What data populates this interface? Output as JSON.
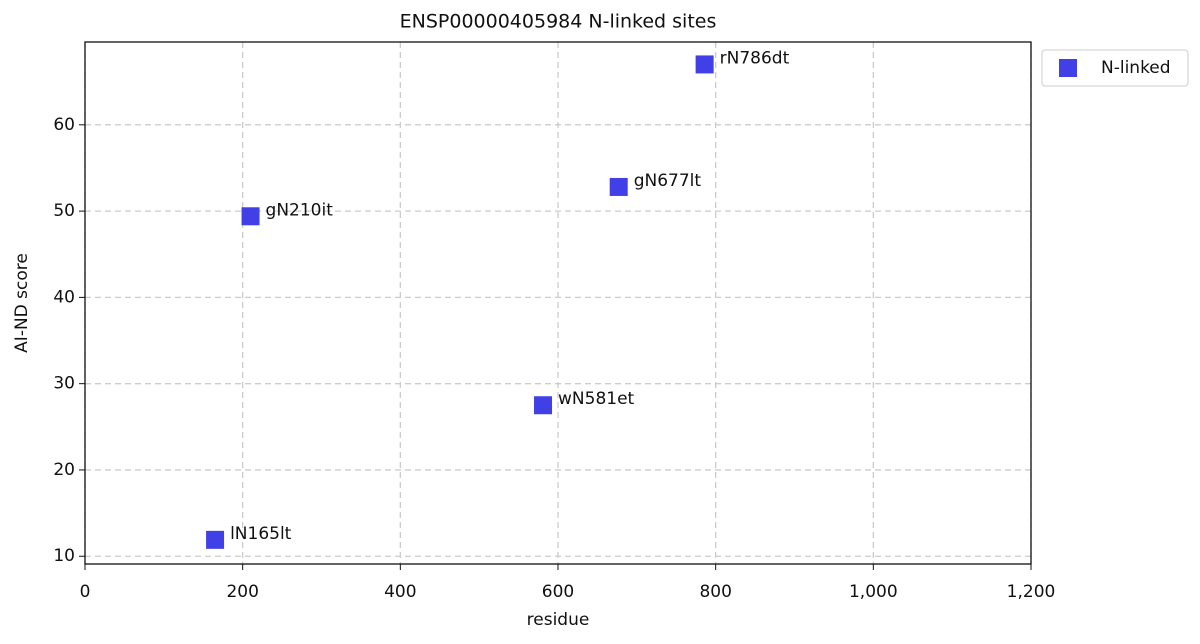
{
  "chart_data": {
    "type": "scatter",
    "title": "ENSP00000405984 N-linked sites",
    "x_label": "residue",
    "y_label": "AI-ND score",
    "series": [
      {
        "name": "N-linked",
        "color": "#4040e6",
        "x": [
          165,
          210,
          581,
          677,
          786
        ],
        "values": [
          11.9,
          49.4,
          27.5,
          52.8,
          67.0
        ],
        "labels": [
          "lN165lt",
          "gN210it",
          "wN581et",
          "gN677lt",
          "rN786dt"
        ]
      }
    ],
    "xlim": [
      0,
      1200
    ],
    "ylim": [
      9.1,
      69.6
    ],
    "xticks": [
      0,
      200,
      400,
      600,
      800,
      {
        "value": 1000,
        "label": "1,000"
      },
      {
        "value": 1200,
        "label": "1,200"
      }
    ],
    "yticks": [
      10,
      20,
      30,
      40,
      50,
      60
    ],
    "grid": true,
    "legend": "outside-right"
  }
}
